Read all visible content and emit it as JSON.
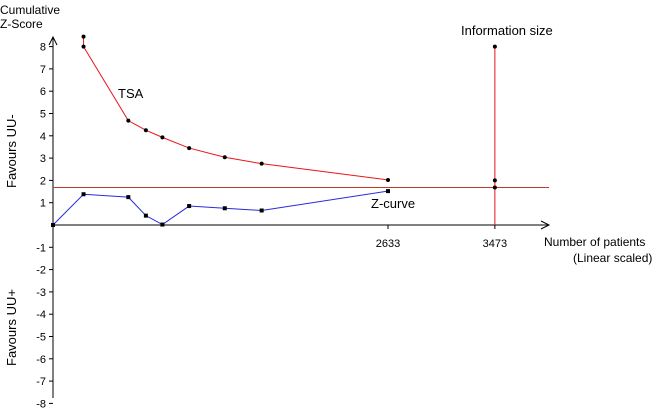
{
  "chart_data": {
    "type": "line",
    "y_axis_title": [
      "Cumulative",
      "Z-Score"
    ],
    "x_axis_title": [
      "Number of patients",
      "(Linear scaled)"
    ],
    "y_side_label_top": "Favours UU-",
    "y_side_label_bottom": "Favours UU+",
    "ylim": [
      -8,
      8
    ],
    "xlim": [
      0,
      4200
    ],
    "y_ticks": [
      8,
      7,
      6,
      5,
      4,
      3,
      2,
      1,
      -1,
      -2,
      -3,
      -4,
      -5,
      -6,
      -7,
      -8
    ],
    "x_tick_labels": [
      {
        "value": 2633,
        "label": "2633"
      },
      {
        "value": 3473,
        "label": "3473"
      }
    ],
    "annotations": {
      "tsa": "TSA",
      "z_curve": "Z-curve",
      "information_size": "Information size"
    },
    "colors": {
      "tsa_boundary": "#e8141a",
      "z_curve": "#2a2adb",
      "conventional_boundary": "#c0392b",
      "axis": "#000000"
    },
    "series": [
      {
        "key": "tsa_boundary",
        "points": [
          {
            "x": 240,
            "y": 8.45
          },
          {
            "x": 240,
            "y": 8.0
          },
          {
            "x": 592,
            "y": 4.68
          },
          {
            "x": 730,
            "y": 4.25
          },
          {
            "x": 860,
            "y": 3.93
          },
          {
            "x": 1070,
            "y": 3.45
          },
          {
            "x": 1350,
            "y": 3.04
          },
          {
            "x": 1640,
            "y": 2.75
          },
          {
            "x": 2633,
            "y": 2.02
          }
        ]
      },
      {
        "key": "z_curve",
        "points": [
          {
            "x": 0,
            "y": 0.0
          },
          {
            "x": 240,
            "y": 1.38
          },
          {
            "x": 592,
            "y": 1.25
          },
          {
            "x": 730,
            "y": 0.42
          },
          {
            "x": 860,
            "y": 0.02
          },
          {
            "x": 1070,
            "y": 0.85
          },
          {
            "x": 1350,
            "y": 0.75
          },
          {
            "x": 1640,
            "y": 0.65
          },
          {
            "x": 2633,
            "y": 1.52
          }
        ]
      }
    ],
    "conventional_boundary_y": 1.68,
    "information_size_line": {
      "x": 3473,
      "y_top": 8.0,
      "y_bottom": 0.0,
      "marker_ys": [
        8.0,
        2.0,
        1.68
      ]
    }
  }
}
